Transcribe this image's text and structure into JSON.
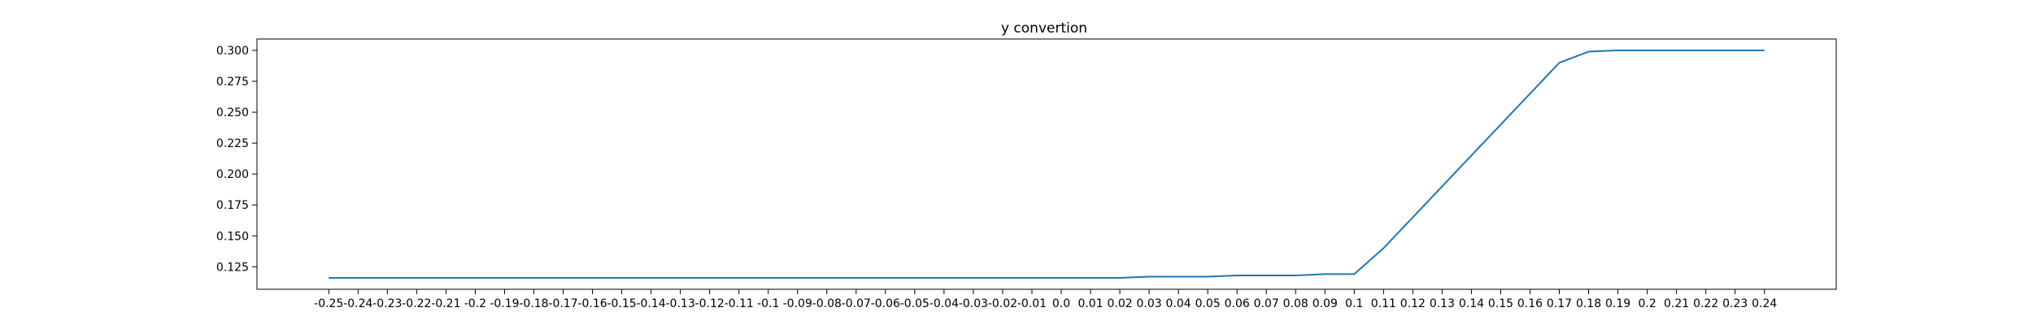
{
  "chart_data": {
    "type": "line",
    "title": "y convertion",
    "xlabel": "",
    "ylabel": "",
    "x": [
      -0.25,
      -0.24,
      -0.23,
      -0.22,
      -0.21,
      -0.2,
      -0.19,
      -0.18,
      -0.17,
      -0.16,
      -0.15,
      -0.14,
      -0.13,
      -0.12,
      -0.11,
      -0.1,
      -0.09,
      -0.08,
      -0.07,
      -0.06,
      -0.05,
      -0.04,
      -0.03,
      -0.02,
      -0.01,
      0.0,
      0.01,
      0.02,
      0.03,
      0.04,
      0.05,
      0.06,
      0.07,
      0.08,
      0.09,
      0.1,
      0.11,
      0.12,
      0.13,
      0.14,
      0.15,
      0.16,
      0.17,
      0.18,
      0.19,
      0.2,
      0.21,
      0.22,
      0.23,
      0.24
    ],
    "x_tick_labels": [
      "-0.25",
      "-0.24",
      "-0.23",
      "-0.22",
      "-0.21",
      "-0.2",
      "-0.19",
      "-0.18",
      "-0.17",
      "-0.16",
      "-0.15",
      "-0.14",
      "-0.13",
      "-0.12",
      "-0.11",
      "-0.1",
      "-0.09",
      "-0.08",
      "-0.07",
      "-0.06",
      "-0.05",
      "-0.04",
      "-0.03",
      "-0.02",
      "-0.01",
      "0.0",
      "0.01",
      "0.02",
      "0.03",
      "0.04",
      "0.05",
      "0.06",
      "0.07",
      "0.08",
      "0.09",
      "0.1",
      "0.11",
      "0.12",
      "0.13",
      "0.14",
      "0.15",
      "0.16",
      "0.17",
      "0.18",
      "0.19",
      "0.2",
      "0.21",
      "0.22",
      "0.23",
      "0.24"
    ],
    "series": [
      {
        "values": [
          0.116,
          0.116,
          0.116,
          0.116,
          0.116,
          0.116,
          0.116,
          0.116,
          0.116,
          0.116,
          0.116,
          0.116,
          0.116,
          0.116,
          0.116,
          0.116,
          0.116,
          0.116,
          0.116,
          0.116,
          0.116,
          0.116,
          0.116,
          0.116,
          0.116,
          0.116,
          0.116,
          0.116,
          0.117,
          0.117,
          0.117,
          0.118,
          0.118,
          0.118,
          0.119,
          0.119,
          0.14,
          0.165,
          0.19,
          0.215,
          0.24,
          0.265,
          0.29,
          0.299,
          0.3,
          0.3,
          0.3,
          0.3,
          0.3,
          0.3
        ],
        "color": "#1f77b4"
      }
    ],
    "y_ticks": [
      0.125,
      0.15,
      0.175,
      0.2,
      0.225,
      0.25,
      0.275,
      0.3
    ],
    "y_tick_labels": [
      "0.125",
      "0.150",
      "0.175",
      "0.200",
      "0.225",
      "0.250",
      "0.275",
      "0.300"
    ],
    "ylim": [
      0.1068,
      0.3092
    ],
    "xlim": [
      -0.2745,
      0.2645
    ],
    "grid": false,
    "legend": "none"
  }
}
